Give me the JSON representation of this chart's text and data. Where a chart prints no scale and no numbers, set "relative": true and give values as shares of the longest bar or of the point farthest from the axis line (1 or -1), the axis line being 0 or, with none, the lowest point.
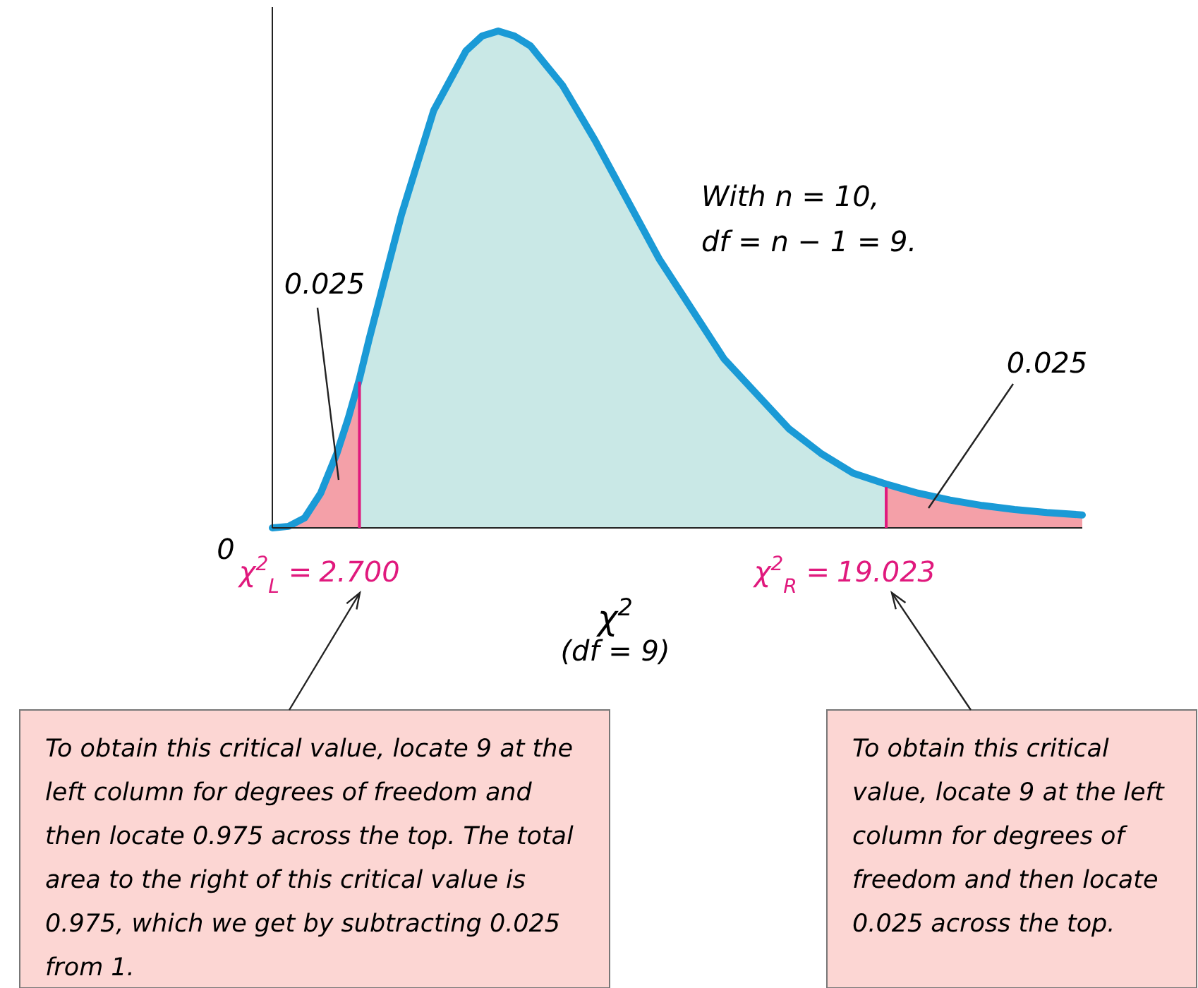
{
  "chart_data": {
    "type": "area",
    "relative": true,
    "x": [
      0,
      0.5,
      1,
      1.5,
      2,
      2.35,
      2.7,
      3,
      4,
      5,
      6,
      6.5,
      7,
      7.5,
      8,
      9,
      10,
      11,
      12,
      13,
      14,
      15,
      16,
      17,
      18,
      19.023,
      20,
      21,
      22,
      23,
      24,
      25.1
    ],
    "series": [
      {
        "color": "#1a9ad6",
        "values": [
          0,
          0.003,
          0.02,
          0.07,
          0.15,
          0.22,
          0.3,
          0.38,
          0.63,
          0.84,
          0.96,
          0.99,
          1,
          0.99,
          0.97,
          0.89,
          0.78,
          0.66,
          0.54,
          0.44,
          0.34,
          0.27,
          0.2,
          0.15,
          0.11,
          0.088,
          0.07,
          0.056,
          0.045,
          0.037,
          0.031,
          0.026
        ]
      }
    ],
    "xlim": [
      0,
      25.1
    ],
    "xticks": [
      {
        "value": 2.7,
        "label": "2.700"
      },
      {
        "value": 19.023,
        "label": "19.023"
      }
    ],
    "xlabel": "χ$^{2}$",
    "bands": [
      {
        "axis": "x",
        "from": 0,
        "to": 2.7,
        "color": "#f4a0a8"
      },
      {
        "axis": "x",
        "from": 19.023,
        "to": 25.1,
        "color": "#f4a0a8"
      }
    ],
    "ref_lines": [
      {
        "axis": "x",
        "value": 2.7,
        "color": "#e0197d"
      },
      {
        "axis": "x",
        "value": 19.023,
        "color": "#e0197d"
      }
    ],
    "annotations": [
      "0",
      "(df = 9)",
      "With n = 10,",
      "df = n − 1 = 9.",
      "0.025",
      "0.025",
      "χ$^{2}$$_{L}$ =",
      "χ$^{2}$$_{R}$ =",
      "To obtain this critical value, locate 9 at the left column for degrees of freedom and then locate 0.975 across the top. The total area to the right of this critical value is 0.975, which we get by subtracting 0.025 from 1.",
      "To obtain this critical value, locate 9 at the left column for degrees of freedom and then locate 0.025 across the top."
    ],
    "tick_labels": "x"
  }
}
